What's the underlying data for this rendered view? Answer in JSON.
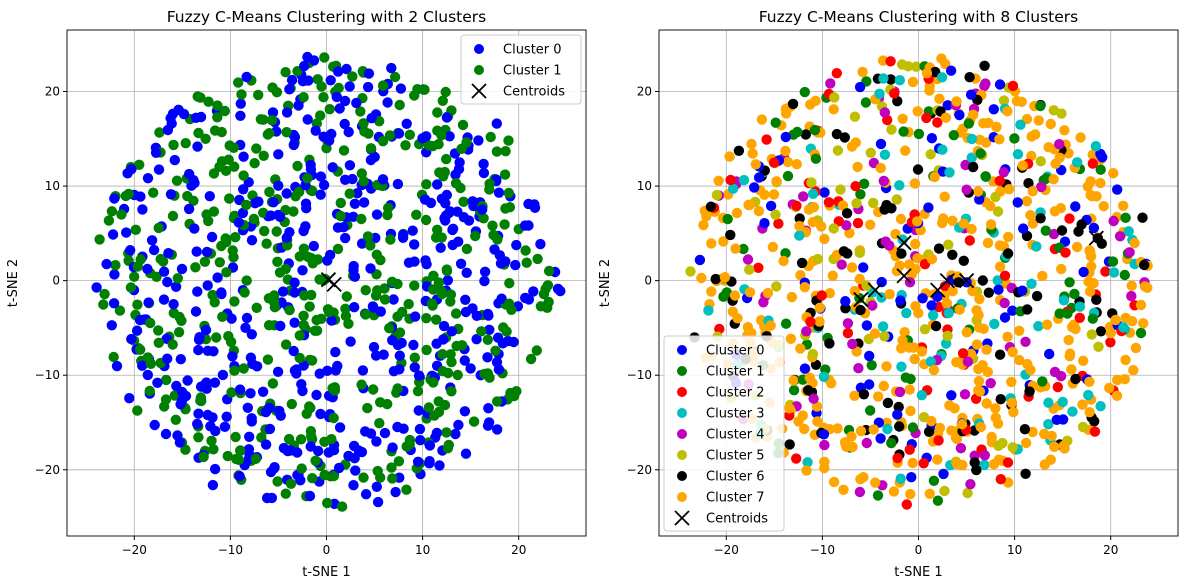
{
  "chart_data": [
    {
      "type": "scatter",
      "title": "Fuzzy C-Means Clustering with 2 Clusters",
      "xlabel": "t-SNE 1",
      "ylabel": "t-SNE 2",
      "xlim": [
        -27,
        27
      ],
      "ylim": [
        -27,
        26.5
      ],
      "xticks": [
        -20,
        -10,
        0,
        10,
        20
      ],
      "yticks": [
        -20,
        -10,
        0,
        10,
        20
      ],
      "grid": true,
      "legend_position": "upper right",
      "point_count_per_series_estimate": 500,
      "series": [
        {
          "name": "Cluster 0",
          "color": "#0000ff",
          "marker": "circle"
        },
        {
          "name": "Cluster 1",
          "color": "#008000",
          "marker": "circle"
        }
      ],
      "centroids": {
        "name": "Centroids",
        "color": "#000000",
        "marker": "x",
        "points": [
          [
            0.2,
            0.1
          ],
          [
            0.8,
            -0.4
          ]
        ]
      }
    },
    {
      "type": "scatter",
      "title": "Fuzzy C-Means Clustering with 8 Clusters",
      "xlabel": "t-SNE 1",
      "ylabel": "t-SNE 2",
      "xlim": [
        -27,
        27
      ],
      "ylim": [
        -27,
        26.5
      ],
      "xticks": [
        -20,
        -10,
        0,
        10,
        20
      ],
      "yticks": [
        -20,
        -10,
        0,
        10,
        20
      ],
      "grid": true,
      "legend_position": "lower left",
      "series": [
        {
          "name": "Cluster 0",
          "color": "#0000ff",
          "marker": "circle"
        },
        {
          "name": "Cluster 1",
          "color": "#008000",
          "marker": "circle"
        },
        {
          "name": "Cluster 2",
          "color": "#ff0000",
          "marker": "circle"
        },
        {
          "name": "Cluster 3",
          "color": "#00bfbf",
          "marker": "circle"
        },
        {
          "name": "Cluster 4",
          "color": "#bf00bf",
          "marker": "circle"
        },
        {
          "name": "Cluster 5",
          "color": "#bfbf00",
          "marker": "circle"
        },
        {
          "name": "Cluster 6",
          "color": "#000000",
          "marker": "circle"
        },
        {
          "name": "Cluster 7",
          "color": "#ffa500",
          "marker": "circle"
        }
      ],
      "centroids": {
        "name": "Centroids",
        "color": "#000000",
        "marker": "x",
        "points": [
          [
            -6,
            -2
          ],
          [
            -4.5,
            -1
          ],
          [
            -1.5,
            0.5
          ],
          [
            -1.5,
            4
          ],
          [
            2,
            -1
          ],
          [
            3,
            0
          ],
          [
            5,
            0
          ],
          [
            18.5,
            4.5
          ]
        ]
      }
    }
  ]
}
